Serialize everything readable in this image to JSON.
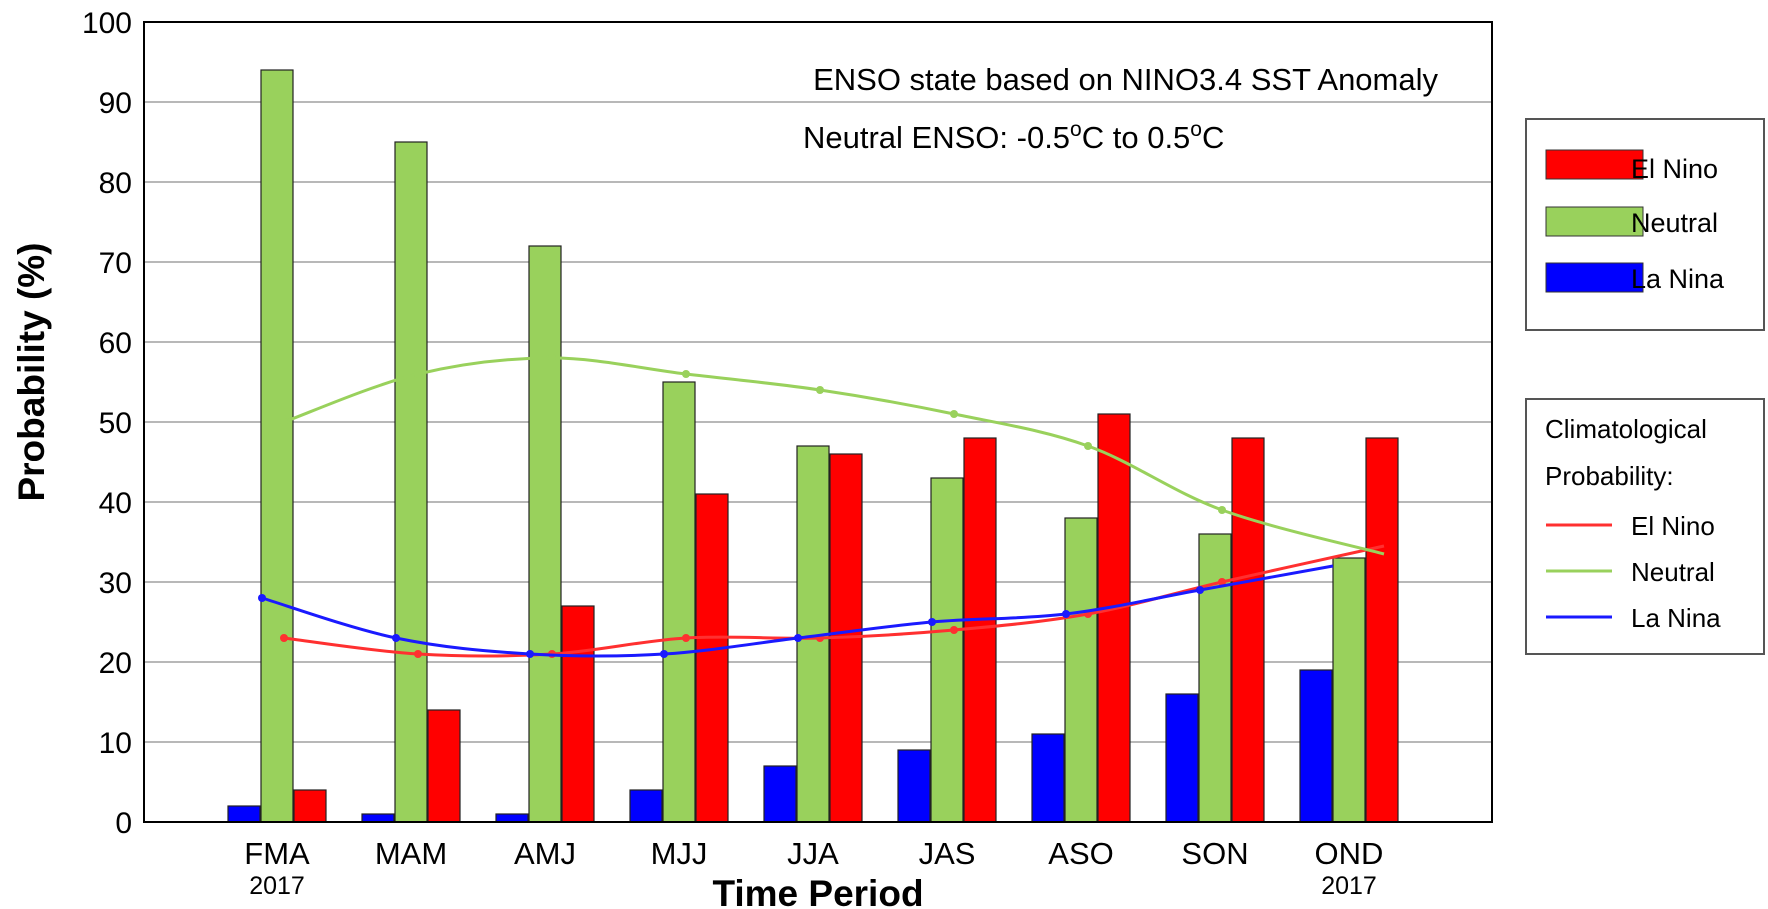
{
  "chart_data": {
    "type": "bar",
    "xlabel": "Time Period",
    "ylabel": "Probability (%)",
    "ylim": [
      0,
      100
    ],
    "yticks": [
      "0",
      "10",
      "20",
      "30",
      "40",
      "50",
      "60",
      "70",
      "80",
      "90",
      "100"
    ],
    "grid": "horizontal",
    "categories": [
      "FMA",
      "MAM",
      "AMJ",
      "MJJ",
      "JJA",
      "JAS",
      "ASO",
      "SON",
      "OND"
    ],
    "category_years": [
      "2017",
      "",
      "",
      "",
      "",
      "",
      "",
      "",
      "2017"
    ],
    "annotations": [
      "ENSO state based on NINO3.4 SST Anomaly",
      "Neutral ENSO: -0.5",
      "C to 0.5",
      "C",
      "o"
    ],
    "series": [
      {
        "name": "La Nina",
        "color": "#0000ff",
        "values": [
          2,
          1,
          1,
          4,
          7,
          9,
          11,
          16,
          19
        ]
      },
      {
        "name": "Neutral",
        "color": "#99d15c",
        "values": [
          94,
          85,
          72,
          55,
          47,
          43,
          38,
          36,
          33
        ]
      },
      {
        "name": "El Nino",
        "color": "#ff0000",
        "values": [
          4,
          14,
          27,
          41,
          46,
          48,
          51,
          48,
          48
        ]
      }
    ],
    "climatology": {
      "title_lines": [
        "Climatological",
        "Probability:"
      ],
      "series": [
        {
          "name": "El Nino",
          "color": "#ff3030",
          "values": [
            23,
            21,
            21,
            23,
            23,
            24,
            26,
            30,
            34.5
          ]
        },
        {
          "name": "Neutral",
          "color": "#99d15c",
          "values": [
            50,
            56,
            58,
            56,
            54,
            51,
            47,
            39,
            33.5
          ]
        },
        {
          "name": "La Nina",
          "color": "#1a1aff",
          "values": [
            28,
            23,
            21,
            21,
            23,
            25,
            26,
            29,
            32
          ]
        }
      ]
    },
    "legend_placement": "right"
  }
}
